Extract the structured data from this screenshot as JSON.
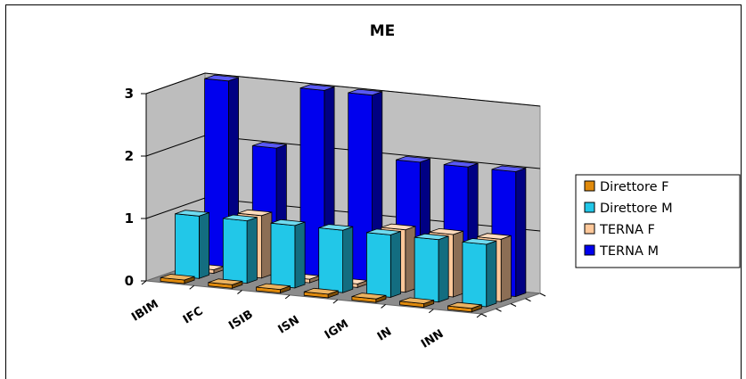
{
  "chart_data": {
    "type": "bar",
    "title": "ME",
    "categories": [
      "IBIM",
      "IFC",
      "ISIB",
      "ISN",
      "IGM",
      "IN",
      "INN"
    ],
    "ylim": [
      0,
      3
    ],
    "yticks": [
      "0",
      "1",
      "2",
      "3"
    ],
    "legend_position": "right",
    "series": [
      {
        "name": "Direttore F",
        "values": [
          0,
          0,
          0,
          0,
          0,
          0,
          0
        ],
        "color": "#e08a0c"
      },
      {
        "name": "Direttore M",
        "values": [
          1,
          1,
          1,
          1,
          1,
          1,
          1
        ],
        "color": "#22c7e8"
      },
      {
        "name": "TERNA F",
        "values": [
          0,
          1,
          0,
          0,
          1,
          1,
          1
        ],
        "color": "#ffc89a"
      },
      {
        "name": "TERNA M",
        "values": [
          3,
          2,
          3,
          3,
          2,
          2,
          2
        ],
        "color": "#0000ee"
      }
    ]
  }
}
